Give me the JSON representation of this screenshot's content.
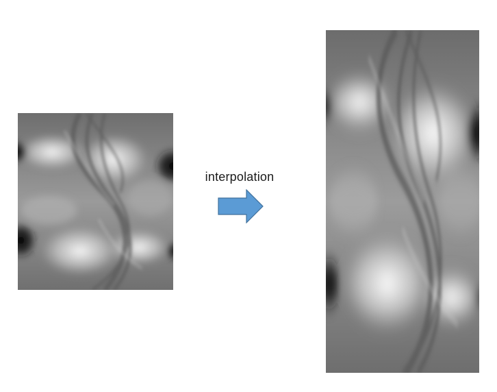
{
  "label": "interpolation",
  "colors": {
    "arrow_fill": "#5b9bd5",
    "arrow_stroke": "#41719c",
    "background": "#ffffff"
  },
  "icons": {
    "arrow": "right-arrow-icon"
  }
}
